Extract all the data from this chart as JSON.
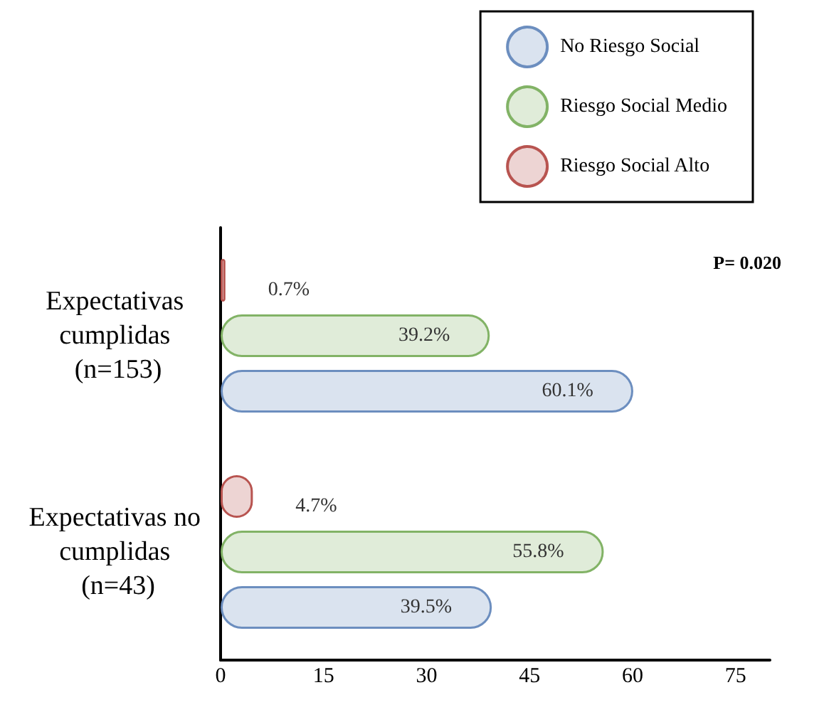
{
  "chart_data": {
    "type": "bar",
    "orientation": "horizontal",
    "categories": [
      "Expectativas cumplidas (n=153)",
      "Expectativas no cumplidas (n=43)"
    ],
    "series": [
      {
        "name": "No Riesgo Social",
        "color": "#6c8ebf",
        "values": [
          60.1,
          39.5
        ],
        "value_labels": [
          "60.1%",
          "39.5%"
        ]
      },
      {
        "name": "Riesgo Social Medio",
        "color": "#82b366",
        "values": [
          39.2,
          55.8
        ],
        "value_labels": [
          "39.2%",
          "55.8%"
        ]
      },
      {
        "name": "Riesgo Social Alto",
        "color": "#b85450",
        "values": [
          0.7,
          4.7
        ],
        "value_labels": [
          "0.7%",
          "4.7%"
        ]
      }
    ],
    "xlim": [
      0,
      80
    ],
    "xticks": [
      0,
      15,
      30,
      45,
      60,
      75
    ],
    "annotations": [
      "P= 0.020"
    ],
    "grid": false,
    "legend": "top right"
  }
}
